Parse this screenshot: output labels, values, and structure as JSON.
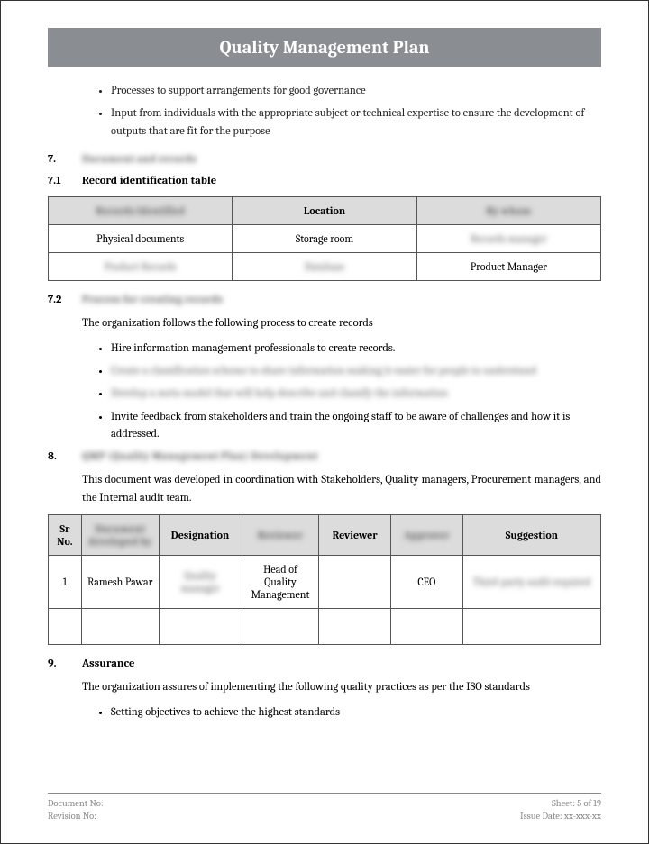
{
  "header": {
    "title": "Quality Management Plan"
  },
  "intro_bullets": [
    "Processes to support arrangements for good governance",
    "Input from individuals with the appropriate subject or technical expertise to ensure the development of outputs that are fit for the purpose"
  ],
  "sec7": {
    "num": "7.",
    "title": "Document and records"
  },
  "sec71": {
    "num": "7.1",
    "title": "Record identification table",
    "table": {
      "headers": [
        "Records Identified",
        "Location",
        "By whom"
      ],
      "header_blur": [
        true,
        false,
        true
      ],
      "rows": [
        {
          "cells": [
            "Physical documents",
            "Storage room",
            "Records manager"
          ],
          "blur": [
            false,
            false,
            true
          ]
        },
        {
          "cells": [
            "Product Records",
            "Database",
            "Product Manager"
          ],
          "blur": [
            true,
            true,
            false
          ]
        }
      ]
    }
  },
  "sec72": {
    "num": "7.2",
    "title": "Process for creating records",
    "intro": "The organization follows the following process to create records",
    "bullets": [
      {
        "text": "Hire information management professionals to create records.",
        "blur": false
      },
      {
        "text": "Create a classification scheme to share information making it easier for people to understand",
        "blur": true
      },
      {
        "text": "Develop a meta model that will help describe and classify the information",
        "blur": true
      },
      {
        "text": "Invite feedback from stakeholders and train the ongoing staff to be aware of challenges and how it is addressed.",
        "blur": false
      }
    ]
  },
  "sec8": {
    "num": "8.",
    "title": "QMP (Quality Management Plan) Development",
    "intro": "This document was developed in coordination with Stakeholders, Quality managers, Procurement managers, and the Internal audit team.",
    "table": {
      "headers": [
        "Sr No.",
        "Document developed by",
        "Designation",
        "Reviewer",
        "Reviewer",
        "Approver",
        "Suggestion"
      ],
      "header_blur": [
        false,
        true,
        false,
        true,
        false,
        true,
        false
      ],
      "rows": [
        {
          "cells": [
            "1",
            "Ramesh Pawar",
            "Quality manager",
            "Head of Quality Management",
            "",
            "CEO",
            "Third-party audit required"
          ],
          "blur": [
            false,
            false,
            true,
            false,
            false,
            false,
            true
          ]
        },
        {
          "cells": [
            "",
            "",
            "",
            "",
            "",
            "",
            ""
          ],
          "blur": [
            false,
            false,
            false,
            false,
            false,
            false,
            false
          ]
        }
      ]
    }
  },
  "sec9": {
    "num": "9.",
    "title": "Assurance",
    "intro": "The organization assures of implementing the following quality practices as per the ISO standards",
    "bullets": [
      "Setting objectives to achieve the highest standards"
    ]
  },
  "footer": {
    "left1": "Document No:",
    "left2": "Revision No:",
    "right1": "Sheet: 5 of 19",
    "right2": "Issue Date: xx-xxx-xx"
  }
}
